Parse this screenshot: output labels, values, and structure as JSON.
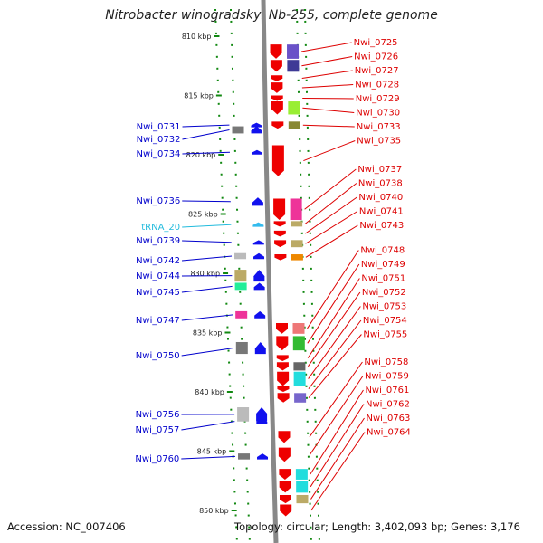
{
  "title": "Nitrobacter winogradskyi Nb-255, complete genome",
  "footer": {
    "accession": "Accession: NC_007406",
    "topology": "Topology: circular; Length: 3,402,093 bp; Genes: 3,176"
  },
  "colors": {
    "forward_label": "#dd0000",
    "reverse_label": "#0000cc",
    "trna_label": "#22bbdd",
    "forward_gene": "#ee0000",
    "reverse_gene": "#1111ee",
    "trna_gene": "#33bbee",
    "backbone": "#888888",
    "dots": "#118811"
  },
  "scale_ticks": [
    "810 kbp",
    "815 kbp",
    "820 kbp",
    "825 kbp",
    "830 kbp",
    "835 kbp",
    "840 kbp",
    "845 kbp",
    "850 kbp"
  ],
  "forward_genes": [
    {
      "name": "Nwi_0725",
      "pos": 810.7,
      "len": 1.2,
      "cog": "#6a52c8"
    },
    {
      "name": "Nwi_0726",
      "pos": 812.0,
      "len": 1.0,
      "cog": "#3e3a96"
    },
    {
      "name": "Nwi_0727",
      "pos": 813.3,
      "len": 0.5,
      "cog": ""
    },
    {
      "name": "Nwi_0728",
      "pos": 813.9,
      "len": 0.9,
      "cog": ""
    },
    {
      "name": "Nwi_0729",
      "pos": 815.0,
      "len": 0.4,
      "cog": ""
    },
    {
      "name": "Nwi_0730",
      "pos": 815.5,
      "len": 1.1,
      "cog": "#99ee33"
    },
    {
      "name": "Nwi_0733",
      "pos": 817.2,
      "len": 0.6,
      "cog": "#888833"
    },
    {
      "name": "Nwi_0735",
      "pos": 819.2,
      "len": 2.6,
      "cog": ""
    },
    {
      "name": "Nwi_0737",
      "pos": 823.7,
      "len": 1.8,
      "cog": "#ee3399"
    },
    {
      "name": "Nwi_0738",
      "pos": 825.6,
      "len": 0.4,
      "cog": "#bbaa66"
    },
    {
      "name": "Nwi_0740",
      "pos": 826.4,
      "len": 0.5,
      "cog": ""
    },
    {
      "name": "Nwi_0741",
      "pos": 827.2,
      "len": 0.6,
      "cog": "#bbaa66"
    },
    {
      "name": "Nwi_0743",
      "pos": 828.4,
      "len": 0.5,
      "cog": "#ee8800"
    },
    {
      "name": "Nwi_0748",
      "pos": 834.2,
      "len": 0.9,
      "cog": "#ee7777"
    },
    {
      "name": "Nwi_0749",
      "pos": 835.3,
      "len": 1.2,
      "cog": "#33bb33"
    },
    {
      "name": "Nwi_0751",
      "pos": 836.9,
      "len": 0.5,
      "cog": ""
    },
    {
      "name": "Nwi_0752",
      "pos": 837.5,
      "len": 0.7,
      "cog": "#666666"
    },
    {
      "name": "Nwi_0753",
      "pos": 838.3,
      "len": 1.2,
      "cog": "#22dddd"
    },
    {
      "name": "Nwi_0754",
      "pos": 839.5,
      "len": 0.5,
      "cog": ""
    },
    {
      "name": "Nwi_0755",
      "pos": 840.1,
      "len": 0.8,
      "cog": "#7766cc"
    },
    {
      "name": "Nwi_0758",
      "pos": 843.3,
      "len": 1.0,
      "cog": ""
    },
    {
      "name": "Nwi_0759",
      "pos": 844.7,
      "len": 1.2,
      "cog": ""
    },
    {
      "name": "Nwi_0761",
      "pos": 846.5,
      "len": 0.9,
      "cog": "#22dddd"
    },
    {
      "name": "Nwi_0762",
      "pos": 847.5,
      "len": 1.0,
      "cog": "#22dddd"
    },
    {
      "name": "Nwi_0763",
      "pos": 848.7,
      "len": 0.7,
      "cog": "#bbaa66"
    },
    {
      "name": "Nwi_0764",
      "pos": 849.5,
      "len": 1.0,
      "cog": ""
    }
  ],
  "reverse_genes": [
    {
      "name": "Nwi_0731",
      "pos": 817.3,
      "len": 0.3,
      "cog": ""
    },
    {
      "name": "Nwi_0732",
      "pos": 817.6,
      "len": 0.6,
      "cog": "#777777"
    },
    {
      "name": "Nwi_0734",
      "pos": 819.6,
      "len": 0.3,
      "cog": ""
    },
    {
      "name": "Nwi_0736",
      "pos": 823.6,
      "len": 0.7,
      "cog": ""
    },
    {
      "name": "tRNA_20",
      "pos": 825.7,
      "len": 0.3,
      "cog": "",
      "type": "trna"
    },
    {
      "name": "Nwi_0739",
      "pos": 827.2,
      "len": 0.3,
      "cog": ""
    },
    {
      "name": "Nwi_0742",
      "pos": 828.3,
      "len": 0.5,
      "cog": "#bbbbbb"
    },
    {
      "name": "Nwi_0744",
      "pos": 829.7,
      "len": 1.0,
      "cog": "#bbaa66"
    },
    {
      "name": "Nwi_0745",
      "pos": 830.8,
      "len": 0.6,
      "cog": "#22ee99"
    },
    {
      "name": "Nwi_0747",
      "pos": 833.2,
      "len": 0.6,
      "cog": "#ee3399"
    },
    {
      "name": "Nwi_0750",
      "pos": 835.8,
      "len": 1.0,
      "cog": "#777777"
    },
    {
      "name": "Nwi_0756",
      "pos": 841.3,
      "len": 1.2,
      "cog": "#bbbbbb"
    },
    {
      "name": "Nwi_0757",
      "pos": 842.3,
      "len": 0.3,
      "cog": ""
    },
    {
      "name": "Nwi_0760",
      "pos": 845.2,
      "len": 0.5,
      "cog": "#777777"
    }
  ]
}
